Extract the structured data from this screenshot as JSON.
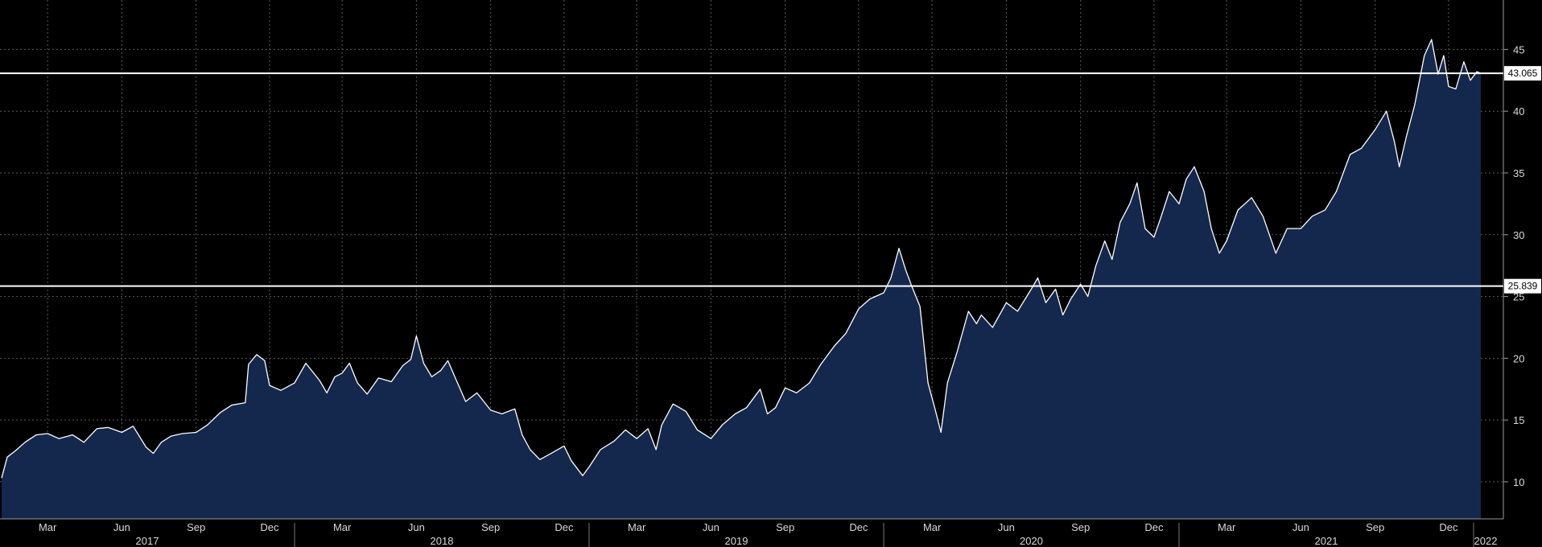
{
  "chart_data": {
    "type": "area",
    "title": "",
    "xlabel": "",
    "ylabel": "",
    "xlim": [
      "2017-01-03",
      "2022-01-10"
    ],
    "ylim": [
      7,
      49
    ],
    "y_ticks": [
      10,
      15,
      20,
      25,
      30,
      35,
      40,
      45
    ],
    "grid": true,
    "colors": {
      "background": "#000000",
      "area_fill": "#14284e",
      "line": "#ffffff",
      "grid": "#5a5a5a"
    },
    "month_ticks": [
      {
        "date": "2017-03-01",
        "label": "Mar"
      },
      {
        "date": "2017-06-01",
        "label": "Jun"
      },
      {
        "date": "2017-09-01",
        "label": "Sep"
      },
      {
        "date": "2017-12-01",
        "label": "Dec"
      },
      {
        "date": "2018-03-01",
        "label": "Mar"
      },
      {
        "date": "2018-06-01",
        "label": "Jun"
      },
      {
        "date": "2018-09-01",
        "label": "Sep"
      },
      {
        "date": "2018-12-01",
        "label": "Dec"
      },
      {
        "date": "2019-03-01",
        "label": "Mar"
      },
      {
        "date": "2019-06-01",
        "label": "Jun"
      },
      {
        "date": "2019-09-01",
        "label": "Sep"
      },
      {
        "date": "2019-12-01",
        "label": "Dec"
      },
      {
        "date": "2020-03-01",
        "label": "Mar"
      },
      {
        "date": "2020-06-01",
        "label": "Jun"
      },
      {
        "date": "2020-09-01",
        "label": "Sep"
      },
      {
        "date": "2020-12-01",
        "label": "Dec"
      },
      {
        "date": "2021-03-01",
        "label": "Mar"
      },
      {
        "date": "2021-06-01",
        "label": "Jun"
      },
      {
        "date": "2021-09-01",
        "label": "Sep"
      },
      {
        "date": "2021-12-01",
        "label": "Dec"
      }
    ],
    "year_ticks": [
      {
        "label": "2017",
        "start": "2017-01-01",
        "end": "2018-01-01"
      },
      {
        "label": "2018",
        "start": "2018-01-01",
        "end": "2019-01-01"
      },
      {
        "label": "2019",
        "start": "2019-01-01",
        "end": "2020-01-01"
      },
      {
        "label": "2020",
        "start": "2020-01-01",
        "end": "2021-01-01"
      },
      {
        "label": "2021",
        "start": "2021-01-01",
        "end": "2022-01-01"
      },
      {
        "label": "2022",
        "start": "2022-01-01",
        "end": "2022-01-10"
      }
    ],
    "reference_lines": [
      {
        "value": 43.065,
        "label": "43.065"
      },
      {
        "value": 25.839,
        "label": "25.839"
      }
    ],
    "series": [
      {
        "points": [
          [
            "2017-01-03",
            10.3
          ],
          [
            "2017-01-10",
            12.0
          ],
          [
            "2017-01-20",
            12.5
          ],
          [
            "2017-02-01",
            13.2
          ],
          [
            "2017-02-15",
            13.8
          ],
          [
            "2017-03-01",
            13.9
          ],
          [
            "2017-03-15",
            13.5
          ],
          [
            "2017-04-01",
            13.8
          ],
          [
            "2017-04-15",
            13.2
          ],
          [
            "2017-05-01",
            14.3
          ],
          [
            "2017-05-15",
            14.4
          ],
          [
            "2017-06-01",
            14.0
          ],
          [
            "2017-06-15",
            14.5
          ],
          [
            "2017-07-01",
            12.8
          ],
          [
            "2017-07-10",
            12.3
          ],
          [
            "2017-07-20",
            13.2
          ],
          [
            "2017-08-01",
            13.7
          ],
          [
            "2017-08-15",
            13.9
          ],
          [
            "2017-09-01",
            14.0
          ],
          [
            "2017-09-15",
            14.6
          ],
          [
            "2017-10-01",
            15.6
          ],
          [
            "2017-10-15",
            16.2
          ],
          [
            "2017-11-01",
            16.4
          ],
          [
            "2017-11-05",
            19.5
          ],
          [
            "2017-11-15",
            20.3
          ],
          [
            "2017-11-25",
            19.8
          ],
          [
            "2017-12-01",
            17.8
          ],
          [
            "2017-12-15",
            17.4
          ],
          [
            "2018-01-01",
            18.0
          ],
          [
            "2018-01-15",
            19.6
          ],
          [
            "2018-02-01",
            18.2
          ],
          [
            "2018-02-10",
            17.2
          ],
          [
            "2018-02-20",
            18.5
          ],
          [
            "2018-03-01",
            18.8
          ],
          [
            "2018-03-10",
            19.6
          ],
          [
            "2018-03-20",
            18.0
          ],
          [
            "2018-04-01",
            17.1
          ],
          [
            "2018-04-15",
            18.4
          ],
          [
            "2018-05-01",
            18.1
          ],
          [
            "2018-05-15",
            19.4
          ],
          [
            "2018-05-25",
            19.9
          ],
          [
            "2018-06-01",
            21.8
          ],
          [
            "2018-06-10",
            19.6
          ],
          [
            "2018-06-20",
            18.5
          ],
          [
            "2018-07-01",
            19.0
          ],
          [
            "2018-07-10",
            19.8
          ],
          [
            "2018-07-20",
            18.3
          ],
          [
            "2018-08-01",
            16.5
          ],
          [
            "2018-08-15",
            17.2
          ],
          [
            "2018-09-01",
            15.8
          ],
          [
            "2018-09-15",
            15.5
          ],
          [
            "2018-10-01",
            15.9
          ],
          [
            "2018-10-10",
            13.8
          ],
          [
            "2018-10-20",
            12.6
          ],
          [
            "2018-11-01",
            11.8
          ],
          [
            "2018-11-15",
            12.3
          ],
          [
            "2018-12-01",
            12.9
          ],
          [
            "2018-12-10",
            11.7
          ],
          [
            "2018-12-24",
            10.5
          ],
          [
            "2019-01-01",
            11.2
          ],
          [
            "2019-01-15",
            12.6
          ],
          [
            "2019-02-01",
            13.3
          ],
          [
            "2019-02-15",
            14.2
          ],
          [
            "2019-03-01",
            13.5
          ],
          [
            "2019-03-15",
            14.3
          ],
          [
            "2019-03-25",
            12.6
          ],
          [
            "2019-04-01",
            14.6
          ],
          [
            "2019-04-15",
            16.3
          ],
          [
            "2019-05-01",
            15.7
          ],
          [
            "2019-05-15",
            14.2
          ],
          [
            "2019-06-01",
            13.5
          ],
          [
            "2019-06-15",
            14.6
          ],
          [
            "2019-07-01",
            15.5
          ],
          [
            "2019-07-15",
            16.0
          ],
          [
            "2019-08-01",
            17.5
          ],
          [
            "2019-08-10",
            15.5
          ],
          [
            "2019-08-20",
            16.0
          ],
          [
            "2019-09-01",
            17.6
          ],
          [
            "2019-09-15",
            17.2
          ],
          [
            "2019-10-01",
            18.0
          ],
          [
            "2019-10-15",
            19.5
          ],
          [
            "2019-11-01",
            21.0
          ],
          [
            "2019-11-15",
            22.0
          ],
          [
            "2019-12-01",
            24.0
          ],
          [
            "2019-12-15",
            24.8
          ],
          [
            "2020-01-01",
            25.3
          ],
          [
            "2020-01-10",
            26.5
          ],
          [
            "2020-01-20",
            28.9
          ],
          [
            "2020-01-28",
            27.2
          ],
          [
            "2020-02-05",
            25.8
          ],
          [
            "2020-02-15",
            24.2
          ],
          [
            "2020-02-25",
            18.0
          ],
          [
            "2020-03-05",
            15.8
          ],
          [
            "2020-03-12",
            14.0
          ],
          [
            "2020-03-20",
            18.0
          ],
          [
            "2020-04-01",
            20.5
          ],
          [
            "2020-04-15",
            23.8
          ],
          [
            "2020-04-25",
            22.8
          ],
          [
            "2020-05-01",
            23.5
          ],
          [
            "2020-05-15",
            22.5
          ],
          [
            "2020-06-01",
            24.5
          ],
          [
            "2020-06-15",
            23.8
          ],
          [
            "2020-07-01",
            25.5
          ],
          [
            "2020-07-10",
            26.5
          ],
          [
            "2020-07-20",
            24.5
          ],
          [
            "2020-08-01",
            25.6
          ],
          [
            "2020-08-10",
            23.5
          ],
          [
            "2020-08-20",
            24.8
          ],
          [
            "2020-09-01",
            26.0
          ],
          [
            "2020-09-10",
            25.0
          ],
          [
            "2020-09-20",
            27.5
          ],
          [
            "2020-10-01",
            29.5
          ],
          [
            "2020-10-10",
            28.0
          ],
          [
            "2020-10-20",
            31.0
          ],
          [
            "2020-11-01",
            32.5
          ],
          [
            "2020-11-10",
            34.2
          ],
          [
            "2020-11-20",
            30.5
          ],
          [
            "2020-12-01",
            29.8
          ],
          [
            "2020-12-10",
            31.5
          ],
          [
            "2020-12-20",
            33.5
          ],
          [
            "2021-01-01",
            32.5
          ],
          [
            "2021-01-10",
            34.5
          ],
          [
            "2021-01-20",
            35.5
          ],
          [
            "2021-02-01",
            33.5
          ],
          [
            "2021-02-10",
            30.5
          ],
          [
            "2021-02-20",
            28.5
          ],
          [
            "2021-03-01",
            29.5
          ],
          [
            "2021-03-15",
            32.0
          ],
          [
            "2021-04-01",
            33.0
          ],
          [
            "2021-04-15",
            31.5
          ],
          [
            "2021-05-01",
            28.5
          ],
          [
            "2021-05-15",
            30.5
          ],
          [
            "2021-06-01",
            30.5
          ],
          [
            "2021-06-15",
            31.5
          ],
          [
            "2021-07-01",
            32.0
          ],
          [
            "2021-07-15",
            33.5
          ],
          [
            "2021-08-01",
            36.5
          ],
          [
            "2021-08-15",
            37.0
          ],
          [
            "2021-09-01",
            38.5
          ],
          [
            "2021-09-15",
            40.0
          ],
          [
            "2021-09-25",
            37.5
          ],
          [
            "2021-10-01",
            35.5
          ],
          [
            "2021-10-10",
            38.0
          ],
          [
            "2021-10-20",
            40.5
          ],
          [
            "2021-11-01",
            44.5
          ],
          [
            "2021-11-10",
            45.8
          ],
          [
            "2021-11-18",
            43.0
          ],
          [
            "2021-11-25",
            44.5
          ],
          [
            "2021-12-01",
            42.0
          ],
          [
            "2021-12-10",
            41.8
          ],
          [
            "2021-12-20",
            44.0
          ],
          [
            "2021-12-28",
            42.5
          ],
          [
            "2022-01-05",
            43.2
          ],
          [
            "2022-01-10",
            43.065
          ]
        ]
      }
    ]
  }
}
